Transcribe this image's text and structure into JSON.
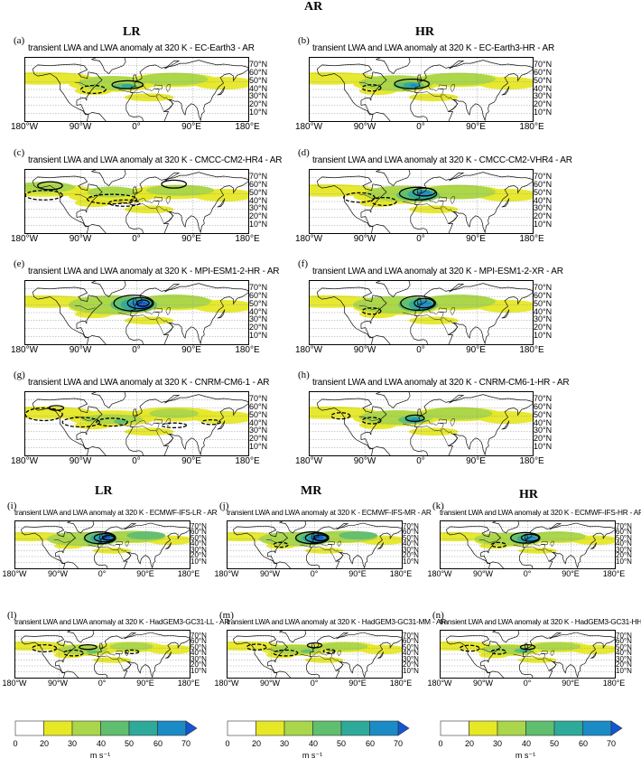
{
  "figure": {
    "title": "AR",
    "col_headers_top": [
      "LR",
      "HR"
    ],
    "col_headers_bottom": [
      "LR",
      "MR",
      "HR"
    ]
  },
  "axes": {
    "lon_ticks": [
      "180°W",
      "90°W",
      "0°",
      "90°E",
      "180°E"
    ],
    "lat_ticks": [
      "70°N",
      "60°N",
      "50°N",
      "40°N",
      "30°N",
      "20°N",
      "10°N"
    ]
  },
  "colorbar": {
    "ticks": [
      "0",
      "20",
      "30",
      "40",
      "50",
      "60",
      "70"
    ],
    "unit": "m s⁻¹",
    "colors": [
      "#ffffff",
      "#e6e825",
      "#a9d64a",
      "#5fbf6f",
      "#2eaa9a",
      "#1b8bc6",
      "#1456d4"
    ]
  },
  "chart_data": {
    "type": "map",
    "variable": "transient LWA and LWA anomaly at 320 K",
    "panels": [
      {
        "label": "(a)",
        "title": "transient LWA and LWA anomaly at 320 K - EC-Earth3 - AR"
      },
      {
        "label": "(b)",
        "title": "transient LWA and LWA anomaly at 320 K - EC-Earth3-HR - AR"
      },
      {
        "label": "(c)",
        "title": "transient LWA and LWA anomaly at 320 K - CMCC-CM2-HR4 - AR"
      },
      {
        "label": "(d)",
        "title": "transient LWA and LWA anomaly at 320 K - CMCC-CM2-VHR4 - AR"
      },
      {
        "label": "(e)",
        "title": "transient LWA and LWA anomaly at 320 K - MPI-ESM1-2-HR - AR"
      },
      {
        "label": "(f)",
        "title": "transient LWA and LWA anomaly at 320 K - MPI-ESM1-2-XR - AR"
      },
      {
        "label": "(g)",
        "title": "transient LWA and LWA anomaly at 320 K - CNRM-CM6-1 - AR"
      },
      {
        "label": "(h)",
        "title": "transient LWA and LWA anomaly at 320 K - CNRM-CM6-1-HR - AR"
      },
      {
        "label": "(i)",
        "title": "transient LWA and LWA anomaly at 320 K - ECMWF-IFS-LR - AR"
      },
      {
        "label": "(j)",
        "title": "transient LWA and LWA anomaly at 320 K - ECMWF-IFS-MR - AR"
      },
      {
        "label": "(k)",
        "title": "transient LWA and LWA anomaly at 320 K - ECMWF-IFS-HR - AR"
      },
      {
        "label": "(l)",
        "title": "transient LWA and LWA anomaly at 320 K - HadGEM3-GC31-LL - AR"
      },
      {
        "label": "(m)",
        "title": "transient LWA and LWA anomaly at 320 K - HadGEM3-GC31-MM - AR"
      },
      {
        "label": "(n)",
        "title": "transient LWA and LWA anomaly at 320 K - HadGEM3-GC31-HH - AR"
      }
    ]
  }
}
